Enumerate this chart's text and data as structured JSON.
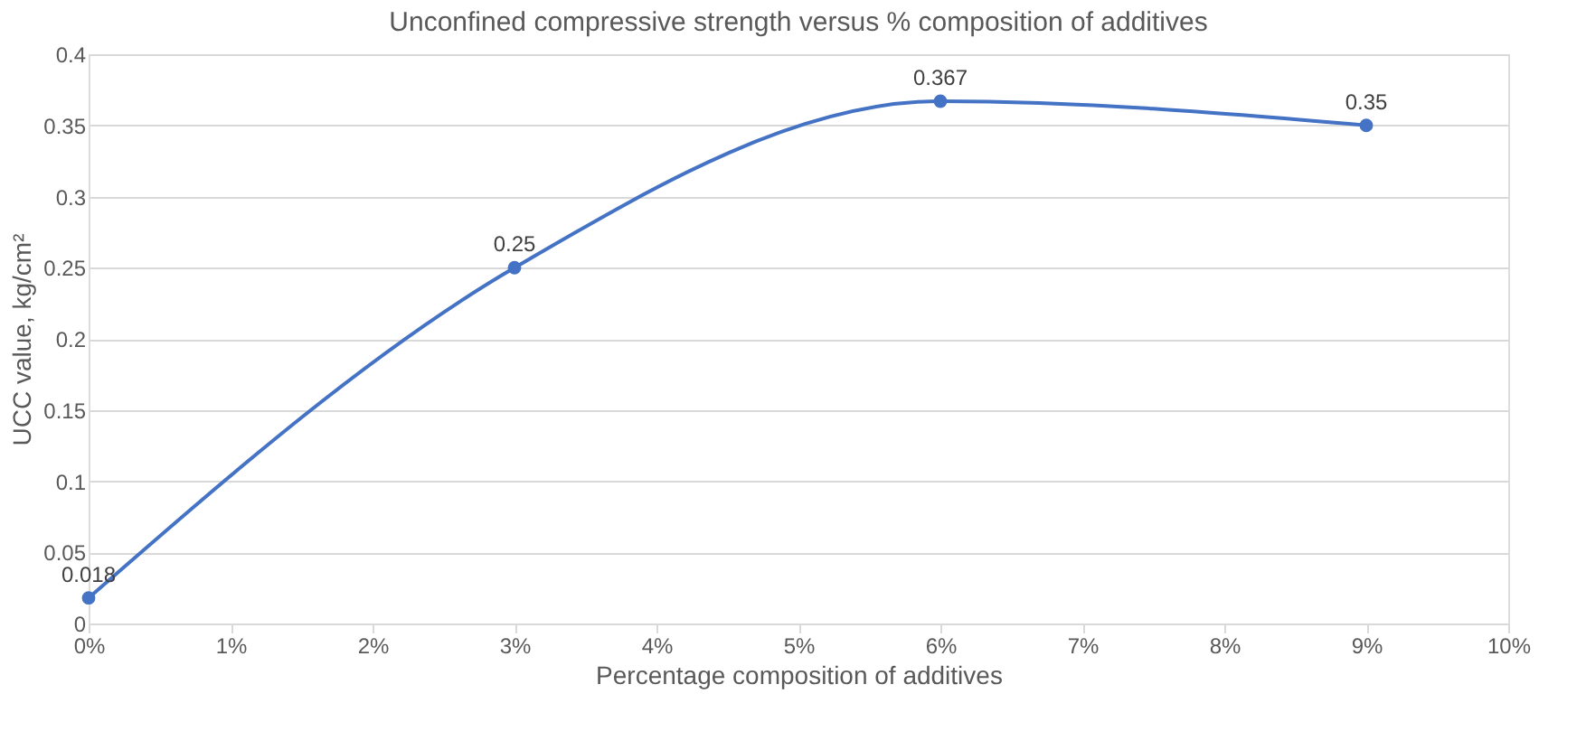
{
  "chart_data": {
    "type": "line",
    "title": "Unconfined compressive strength versus % composition of additives",
    "xlabel": "Percentage composition of additives",
    "ylabel": "UCC value, kg/cm²",
    "x": [
      0,
      3,
      6,
      9
    ],
    "series": [
      {
        "color": "#4472c4",
        "values": [
          0.018,
          0.25,
          0.367,
          0.35
        ]
      }
    ],
    "xlim": [
      0,
      10
    ],
    "xticks": [
      {
        "value": 0,
        "label": "0%"
      },
      {
        "value": 1,
        "label": "1%"
      },
      {
        "value": 2,
        "label": "2%"
      },
      {
        "value": 3,
        "label": "3%"
      },
      {
        "value": 4,
        "label": "4%"
      },
      {
        "value": 5,
        "label": "5%"
      },
      {
        "value": 6,
        "label": "6%"
      },
      {
        "value": 7,
        "label": "7%"
      },
      {
        "value": 8,
        "label": "8%"
      },
      {
        "value": 9,
        "label": "9%"
      },
      {
        "value": 10,
        "label": "10%"
      }
    ],
    "ylim": [
      0,
      0.4
    ],
    "yticks": [
      0,
      0.05,
      0.1,
      0.15,
      0.2,
      0.25,
      0.3,
      0.35,
      0.4
    ],
    "grid": "y",
    "marker": "circle",
    "line_style": "solid",
    "data_labels": true
  }
}
